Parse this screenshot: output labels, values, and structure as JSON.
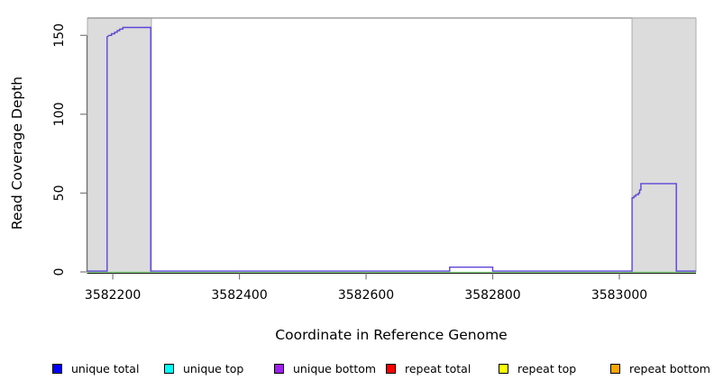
{
  "chart_data": {
    "type": "line",
    "title": "",
    "xlabel": "Coordinate in Reference Genome",
    "ylabel": "Read Coverage Depth",
    "x_ticks": [
      3582200,
      3582400,
      3582600,
      3582800,
      3583000
    ],
    "y_ticks": [
      0,
      50,
      100,
      150
    ],
    "xlim": [
      3582160,
      3583121
    ],
    "ylim": [
      0,
      161
    ],
    "grid": false,
    "legend_position": "bottom",
    "shaded_regions": [
      {
        "name": "left-shaded-region",
        "x0": 3582160,
        "x1": 3582261,
        "fill": "#DCDCDC",
        "border": "#ABABAB"
      },
      {
        "name": "right-shaded-region",
        "x0": 3583020,
        "x1": 3583121,
        "fill": "#DCDCDC",
        "border": "#ABABAB"
      }
    ],
    "series": [
      {
        "name": "zero-line",
        "color": "#90EE90",
        "points": [
          [
            3582160,
            0
          ],
          [
            3583121,
            0
          ]
        ]
      },
      {
        "name": "coverage-depth",
        "color": "#5E44D8",
        "points": [
          [
            3582160,
            0
          ],
          [
            3582191,
            0
          ],
          [
            3582191,
            149
          ],
          [
            3582194,
            150
          ],
          [
            3582198,
            150
          ],
          [
            3582198,
            151
          ],
          [
            3582203,
            151
          ],
          [
            3582203,
            152
          ],
          [
            3582207,
            152
          ],
          [
            3582207,
            153
          ],
          [
            3582211,
            153
          ],
          [
            3582211,
            154
          ],
          [
            3582216,
            154
          ],
          [
            3582216,
            155
          ],
          [
            3582260,
            155
          ],
          [
            3582260,
            0
          ],
          [
            3582732,
            0
          ],
          [
            3582732,
            3
          ],
          [
            3582800,
            3
          ],
          [
            3582800,
            0
          ],
          [
            3583020,
            0
          ],
          [
            3583020,
            47
          ],
          [
            3583023,
            47
          ],
          [
            3583023,
            48
          ],
          [
            3583026,
            48
          ],
          [
            3583026,
            49
          ],
          [
            3583030,
            49
          ],
          [
            3583030,
            50
          ],
          [
            3583032,
            50
          ],
          [
            3583032,
            52
          ],
          [
            3583034,
            52
          ],
          [
            3583034,
            56
          ],
          [
            3583090,
            56
          ],
          [
            3583090,
            0
          ],
          [
            3583121,
            0
          ]
        ]
      }
    ],
    "legend": [
      {
        "label": "unique total",
        "color": "#0000FF"
      },
      {
        "label": "unique top",
        "color": "#00FFFF"
      },
      {
        "label": "unique bottom",
        "color": "#A020F0"
      },
      {
        "label": "repeat total",
        "color": "#FF0000"
      },
      {
        "label": "repeat top",
        "color": "#FFFF00"
      },
      {
        "label": "repeat bottom",
        "color": "#FFA500"
      }
    ],
    "colors": {
      "plot_background": "#FFFFFF",
      "box_top_line": "#8C8C8C",
      "axis_line": "#000000",
      "tick_mark": "#7D7D7D",
      "text": "#000000"
    }
  }
}
